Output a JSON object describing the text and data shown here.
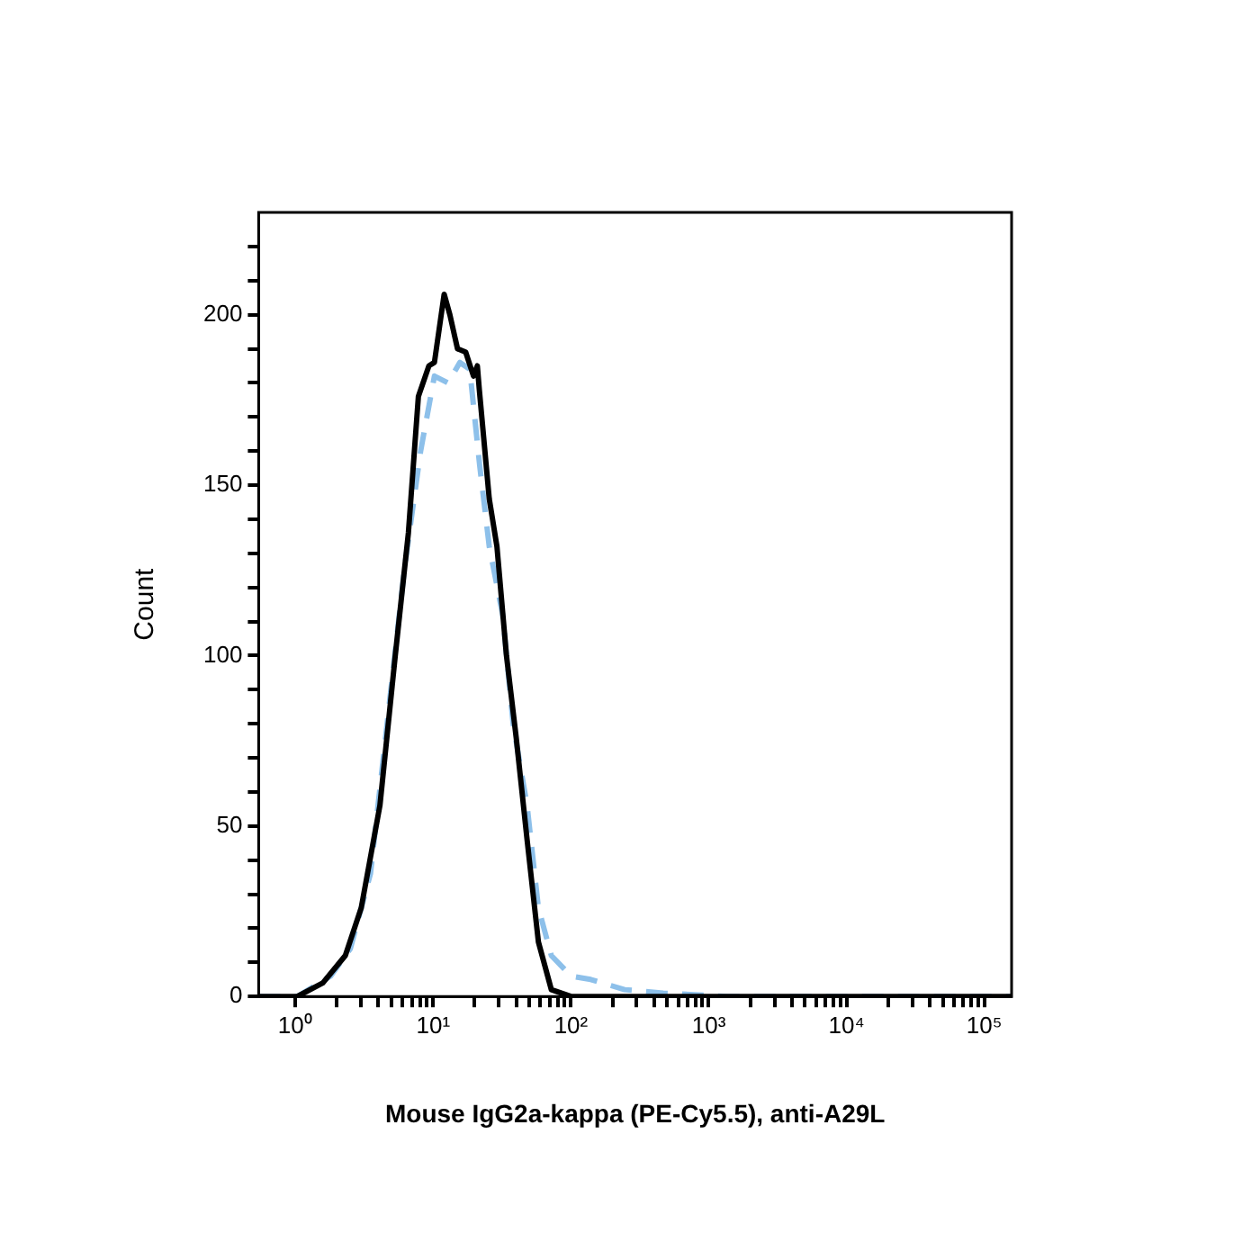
{
  "chart_data": {
    "type": "line",
    "xlabel": "Mouse IgG2a-kappa (PE-Cy5.5), anti-A29L",
    "ylabel": "Count",
    "log": "x",
    "xlim": [
      0.54,
      158000
    ],
    "ylim": [
      0,
      230
    ],
    "xticks": [
      {
        "value": 1,
        "label": "10⁰"
      },
      {
        "value": 2,
        "label": null
      },
      {
        "value": 3,
        "label": null
      },
      {
        "value": 4,
        "label": null
      },
      {
        "value": 5,
        "label": null
      },
      {
        "value": 6,
        "label": null
      },
      {
        "value": 7,
        "label": null
      },
      {
        "value": 8,
        "label": null
      },
      {
        "value": 9,
        "label": null
      },
      {
        "value": 10,
        "label": "10¹"
      },
      {
        "value": 20,
        "label": null
      },
      {
        "value": 30,
        "label": null
      },
      {
        "value": 40,
        "label": null
      },
      {
        "value": 50,
        "label": null
      },
      {
        "value": 60,
        "label": null
      },
      {
        "value": 70,
        "label": null
      },
      {
        "value": 80,
        "label": null
      },
      {
        "value": 90,
        "label": null
      },
      {
        "value": 100,
        "label": "10²"
      },
      {
        "value": 200,
        "label": null
      },
      {
        "value": 300,
        "label": null
      },
      {
        "value": 400,
        "label": null
      },
      {
        "value": 500,
        "label": null
      },
      {
        "value": 600,
        "label": null
      },
      {
        "value": 700,
        "label": null
      },
      {
        "value": 800,
        "label": null
      },
      {
        "value": 900,
        "label": null
      },
      {
        "value": 1000,
        "label": "10³"
      },
      {
        "value": 2000,
        "label": null
      },
      {
        "value": 3000,
        "label": null
      },
      {
        "value": 4000,
        "label": null
      },
      {
        "value": 5000,
        "label": null
      },
      {
        "value": 6000,
        "label": null
      },
      {
        "value": 7000,
        "label": null
      },
      {
        "value": 8000,
        "label": null
      },
      {
        "value": 9000,
        "label": null
      },
      {
        "value": 10000,
        "label": "10⁴"
      },
      {
        "value": 20000,
        "label": null
      },
      {
        "value": 30000,
        "label": null
      },
      {
        "value": 40000,
        "label": null
      },
      {
        "value": 50000,
        "label": null
      },
      {
        "value": 60000,
        "label": null
      },
      {
        "value": 70000,
        "label": null
      },
      {
        "value": 80000,
        "label": null
      },
      {
        "value": 90000,
        "label": null
      },
      {
        "value": 100000,
        "label": "10⁵"
      }
    ],
    "yticks": [
      0,
      {
        "value": 10,
        "label": null
      },
      {
        "value": 20,
        "label": null
      },
      {
        "value": 30,
        "label": null
      },
      {
        "value": 40,
        "label": null
      },
      50,
      {
        "value": 60,
        "label": null
      },
      {
        "value": 70,
        "label": null
      },
      {
        "value": 80,
        "label": null
      },
      {
        "value": 90,
        "label": null
      },
      100,
      {
        "value": 110,
        "label": null
      },
      {
        "value": 120,
        "label": null
      },
      {
        "value": 130,
        "label": null
      },
      {
        "value": 140,
        "label": null
      },
      150,
      {
        "value": 160,
        "label": null
      },
      {
        "value": 170,
        "label": null
      },
      {
        "value": 180,
        "label": null
      },
      {
        "value": 190,
        "label": null
      },
      200,
      {
        "value": 210,
        "label": null
      },
      {
        "value": 220,
        "label": null
      }
    ],
    "series": [
      {
        "color": "#000000",
        "line_style": "solid",
        "x": [
          0.54,
          1.03,
          1.58,
          2.3,
          3.0,
          4.1,
          5.3,
          6.6,
          7.8,
          9.3,
          10.2,
          12,
          13.2,
          15,
          17.2,
          19.6,
          20.9,
          21.6,
          25.5,
          29,
          34,
          40,
          48,
          58,
          72,
          100,
          158000
        ],
        "values": [
          0,
          0,
          4,
          12,
          26,
          56,
          100,
          136,
          176,
          185,
          186,
          206,
          200,
          190,
          189,
          182,
          185,
          178,
          146,
          132,
          100,
          76,
          46,
          16,
          2,
          0,
          0
        ]
      },
      {
        "color": "#8dc0ea",
        "line_style": "dashed",
        "x": [
          0.54,
          1.03,
          1.8,
          2.5,
          3.5,
          4.8,
          6.2,
          8.1,
          10.2,
          12.8,
          15.6,
          18.4,
          21.7,
          25.5,
          31.9,
          38,
          48,
          58,
          72,
          100,
          139,
          245,
          467,
          1370,
          158000
        ],
        "values": [
          0,
          0,
          6,
          14,
          36,
          86,
          126,
          160,
          182,
          180,
          186,
          184,
          156,
          132,
          112,
          80,
          56,
          26,
          12,
          6,
          5,
          2,
          1,
          0,
          0
        ]
      }
    ]
  }
}
